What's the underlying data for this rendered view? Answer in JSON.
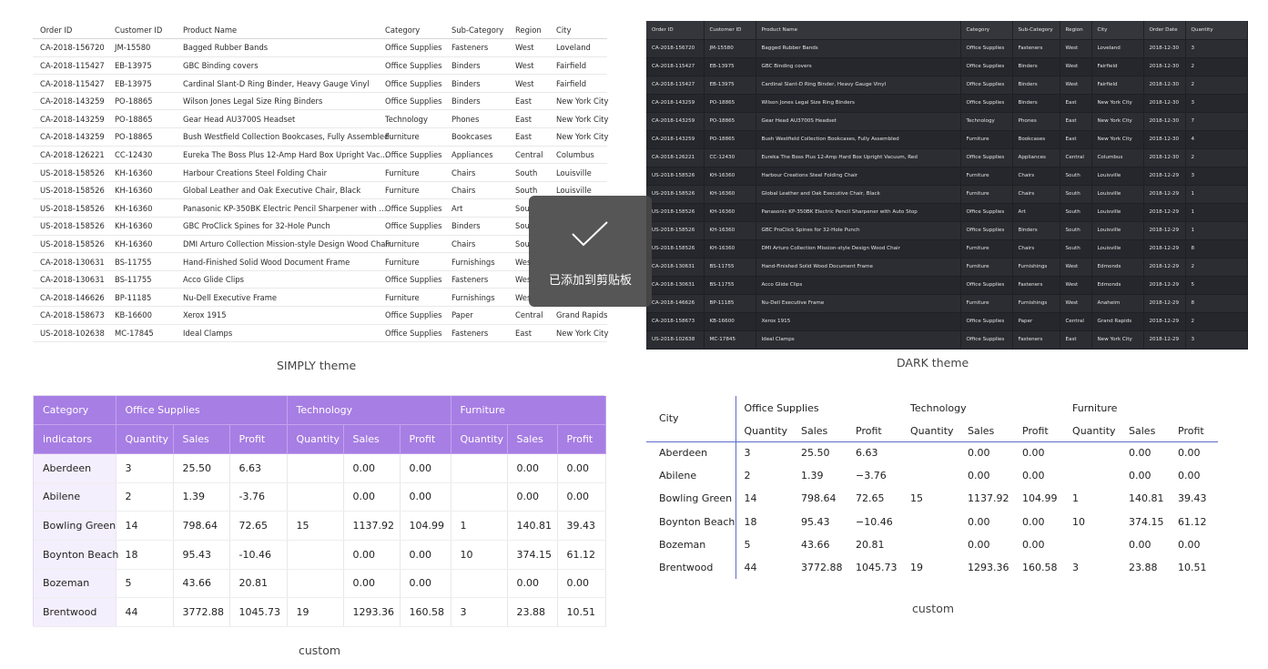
{
  "simply_table": {
    "headers": [
      "Order ID",
      "Customer ID",
      "Product Name",
      "Category",
      "Sub-Category",
      "Region",
      "City"
    ],
    "rows": [
      [
        "CA-2018-156720",
        "JM-15580",
        "Bagged Rubber Bands",
        "Office Supplies",
        "Fasteners",
        "West",
        "Loveland"
      ],
      [
        "CA-2018-115427",
        "EB-13975",
        "GBC Binding covers",
        "Office Supplies",
        "Binders",
        "West",
        "Fairfield"
      ],
      [
        "CA-2018-115427",
        "EB-13975",
        "Cardinal Slant-D Ring Binder, Heavy Gauge Vinyl",
        "Office Supplies",
        "Binders",
        "West",
        "Fairfield"
      ],
      [
        "CA-2018-143259",
        "PO-18865",
        "Wilson Jones Legal Size Ring Binders",
        "Office Supplies",
        "Binders",
        "East",
        "New York City"
      ],
      [
        "CA-2018-143259",
        "PO-18865",
        "Gear Head AU3700S Headset",
        "Technology",
        "Phones",
        "East",
        "New York City"
      ],
      [
        "CA-2018-143259",
        "PO-18865",
        "Bush Westfield Collection Bookcases, Fully Assembled",
        "Furniture",
        "Bookcases",
        "East",
        "New York City"
      ],
      [
        "CA-2018-126221",
        "CC-12430",
        "Eureka The Boss Plus 12-Amp Hard Box Upright Vac...",
        "Office Supplies",
        "Appliances",
        "Central",
        "Columbus"
      ],
      [
        "US-2018-158526",
        "KH-16360",
        "Harbour Creations Steel Folding Chair",
        "Furniture",
        "Chairs",
        "South",
        "Louisville"
      ],
      [
        "US-2018-158526",
        "KH-16360",
        "Global Leather and Oak Executive Chair, Black",
        "Furniture",
        "Chairs",
        "South",
        "Louisville"
      ],
      [
        "US-2018-158526",
        "KH-16360",
        "Panasonic KP-350BK Electric Pencil Sharpener with ...",
        "Office Supplies",
        "Art",
        "Sou",
        ""
      ],
      [
        "US-2018-158526",
        "KH-16360",
        "GBC ProClick Spines for 32-Hole Punch",
        "Office Supplies",
        "Binders",
        "Sou",
        ""
      ],
      [
        "US-2018-158526",
        "KH-16360",
        "DMI Arturo Collection Mission-style Design Wood Chair",
        "Furniture",
        "Chairs",
        "Sou",
        ""
      ],
      [
        "CA-2018-130631",
        "BS-11755",
        "Hand-Finished Solid Wood Document Frame",
        "Furniture",
        "Furnishings",
        "Wes",
        ""
      ],
      [
        "CA-2018-130631",
        "BS-11755",
        "Acco Glide Clips",
        "Office Supplies",
        "Fasteners",
        "Wes",
        ""
      ],
      [
        "CA-2018-146626",
        "BP-11185",
        "Nu-Dell Executive Frame",
        "Furniture",
        "Furnishings",
        "Wes",
        ""
      ],
      [
        "CA-2018-158673",
        "KB-16600",
        "Xerox 1915",
        "Office Supplies",
        "Paper",
        "Central",
        "Grand Rapids"
      ],
      [
        "US-2018-102638",
        "MC-17845",
        "Ideal Clamps",
        "Office Supplies",
        "Fasteners",
        "East",
        "New York City"
      ]
    ],
    "caption": "SIMPLY theme"
  },
  "dark_table": {
    "headers": [
      "Order ID",
      "Customer ID",
      "Product Name",
      "Category",
      "Sub-Category",
      "Region",
      "City",
      "Order Date",
      "Quantity"
    ],
    "rows": [
      [
        "CA-2018-156720",
        "JM-15580",
        "Bagged Rubber Bands",
        "Office Supplies",
        "Fasteners",
        "West",
        "Loveland",
        "2018-12-30",
        "3"
      ],
      [
        "CA-2018-115427",
        "EB-13975",
        "GBC Binding covers",
        "Office Supplies",
        "Binders",
        "West",
        "Fairfield",
        "2018-12-30",
        "2"
      ],
      [
        "CA-2018-115427",
        "EB-13975",
        "Cardinal Slant-D Ring Binder, Heavy Gauge Vinyl",
        "Office Supplies",
        "Binders",
        "West",
        "Fairfield",
        "2018-12-30",
        "2"
      ],
      [
        "CA-2018-143259",
        "PO-18865",
        "Wilson Jones Legal Size Ring Binders",
        "Office Supplies",
        "Binders",
        "East",
        "New York City",
        "2018-12-30",
        "3"
      ],
      [
        "CA-2018-143259",
        "PO-18865",
        "Gear Head AU3700S Headset",
        "Technology",
        "Phones",
        "East",
        "New York City",
        "2018-12-30",
        "7"
      ],
      [
        "CA-2018-143259",
        "PO-18865",
        "Bush Westfield Collection Bookcases, Fully Assembled",
        "Furniture",
        "Bookcases",
        "East",
        "New York City",
        "2018-12-30",
        "4"
      ],
      [
        "CA-2018-126221",
        "CC-12430",
        "Eureka The Boss Plus 12-Amp Hard Box Upright Vacuum, Red",
        "Office Supplies",
        "Appliances",
        "Central",
        "Columbus",
        "2018-12-30",
        "2"
      ],
      [
        "US-2018-158526",
        "KH-16360",
        "Harbour Creations Steel Folding Chair",
        "Furniture",
        "Chairs",
        "South",
        "Louisville",
        "2018-12-29",
        "3"
      ],
      [
        "US-2018-158526",
        "KH-16360",
        "Global Leather and Oak Executive Chair, Black",
        "Furniture",
        "Chairs",
        "South",
        "Louisville",
        "2018-12-29",
        "1"
      ],
      [
        "US-2018-158526",
        "KH-16360",
        "Panasonic KP-350BK Electric Pencil Sharpener with Auto Stop",
        "Office Supplies",
        "Art",
        "South",
        "Louisville",
        "2018-12-29",
        "1"
      ],
      [
        "US-2018-158526",
        "KH-16360",
        "GBC ProClick Spines for 32-Hole Punch",
        "Office Supplies",
        "Binders",
        "South",
        "Louisville",
        "2018-12-29",
        "1"
      ],
      [
        "US-2018-158526",
        "KH-16360",
        "DMI Arturo Collection Mission-style Design Wood Chair",
        "Furniture",
        "Chairs",
        "South",
        "Louisville",
        "2018-12-29",
        "8"
      ],
      [
        "CA-2018-130631",
        "BS-11755",
        "Hand-Finished Solid Wood Document Frame",
        "Furniture",
        "Furnishings",
        "West",
        "Edmonds",
        "2018-12-29",
        "2"
      ],
      [
        "CA-2018-130631",
        "BS-11755",
        "Acco Glide Clips",
        "Office Supplies",
        "Fasteners",
        "West",
        "Edmonds",
        "2018-12-29",
        "5"
      ],
      [
        "CA-2018-146626",
        "BP-11185",
        "Nu-Dell Executive Frame",
        "Furniture",
        "Furnishings",
        "West",
        "Anaheim",
        "2018-12-29",
        "8"
      ],
      [
        "CA-2018-158673",
        "KB-16600",
        "Xerox 1915",
        "Office Supplies",
        "Paper",
        "Central",
        "Grand Rapids",
        "2018-12-29",
        "2"
      ],
      [
        "US-2018-102638",
        "MC-17845",
        "Ideal Clamps",
        "Office Supplies",
        "Fasteners",
        "East",
        "New York City",
        "2018-12-29",
        "3"
      ]
    ],
    "caption": "DARK theme"
  },
  "purple_pivot": {
    "row1": [
      "Category",
      "Office Supplies",
      "Technology",
      "Furniture"
    ],
    "row2": [
      "indicators",
      "Quantity",
      "Sales",
      "Profit",
      "Quantity",
      "Sales",
      "Profit",
      "Quantity",
      "Sales",
      "Profit"
    ],
    "rows": [
      [
        "Aberdeen",
        "3",
        "25.50",
        "6.63",
        "",
        "0.00",
        "0.00",
        "",
        "0.00",
        "0.00"
      ],
      [
        "Abilene",
        "2",
        "1.39",
        "-3.76",
        "",
        "0.00",
        "0.00",
        "",
        "0.00",
        "0.00"
      ],
      [
        "Bowling Green",
        "14",
        "798.64",
        "72.65",
        "15",
        "1137.92",
        "104.99",
        "1",
        "140.81",
        "39.43"
      ],
      [
        "Boynton Beach",
        "18",
        "95.43",
        "-10.46",
        "",
        "0.00",
        "0.00",
        "10",
        "374.15",
        "61.12"
      ],
      [
        "Bozeman",
        "5",
        "43.66",
        "20.81",
        "",
        "0.00",
        "0.00",
        "",
        "0.00",
        "0.00"
      ],
      [
        "Brentwood",
        "44",
        "3772.88",
        "1045.73",
        "19",
        "1293.36",
        "160.58",
        "3",
        "23.88",
        "10.51"
      ]
    ],
    "caption": "custom",
    "accent": "#a77ee4"
  },
  "plain_pivot": {
    "row1": [
      "City",
      "Office Supplies",
      "Technology",
      "Furniture"
    ],
    "row2": [
      "Quantity",
      "Sales",
      "Profit",
      "Quantity",
      "Sales",
      "Profit",
      "Quantity",
      "Sales",
      "Profit"
    ],
    "rows": [
      [
        "Aberdeen",
        "3",
        "25.50",
        "6.63",
        "",
        "0.00",
        "0.00",
        "",
        "0.00",
        "0.00"
      ],
      [
        "Abilene",
        "2",
        "1.39",
        "−3.76",
        "",
        "0.00",
        "0.00",
        "",
        "0.00",
        "0.00"
      ],
      [
        "Bowling Green",
        "14",
        "798.64",
        "72.65",
        "15",
        "1137.92",
        "104.99",
        "1",
        "140.81",
        "39.43"
      ],
      [
        "Boynton Beach",
        "18",
        "95.43",
        "−10.46",
        "",
        "0.00",
        "0.00",
        "10",
        "374.15",
        "61.12"
      ],
      [
        "Bozeman",
        "5",
        "43.66",
        "20.81",
        "",
        "0.00",
        "0.00",
        "",
        "0.00",
        "0.00"
      ],
      [
        "Brentwood",
        "44",
        "3772.88",
        "1045.73",
        "19",
        "1293.36",
        "160.58",
        "3",
        "23.88",
        "10.51"
      ]
    ],
    "caption": "custom",
    "accent": "#5c6bc9"
  },
  "toast": {
    "message": "已添加到剪贴板",
    "icon": "checkmark-icon"
  }
}
